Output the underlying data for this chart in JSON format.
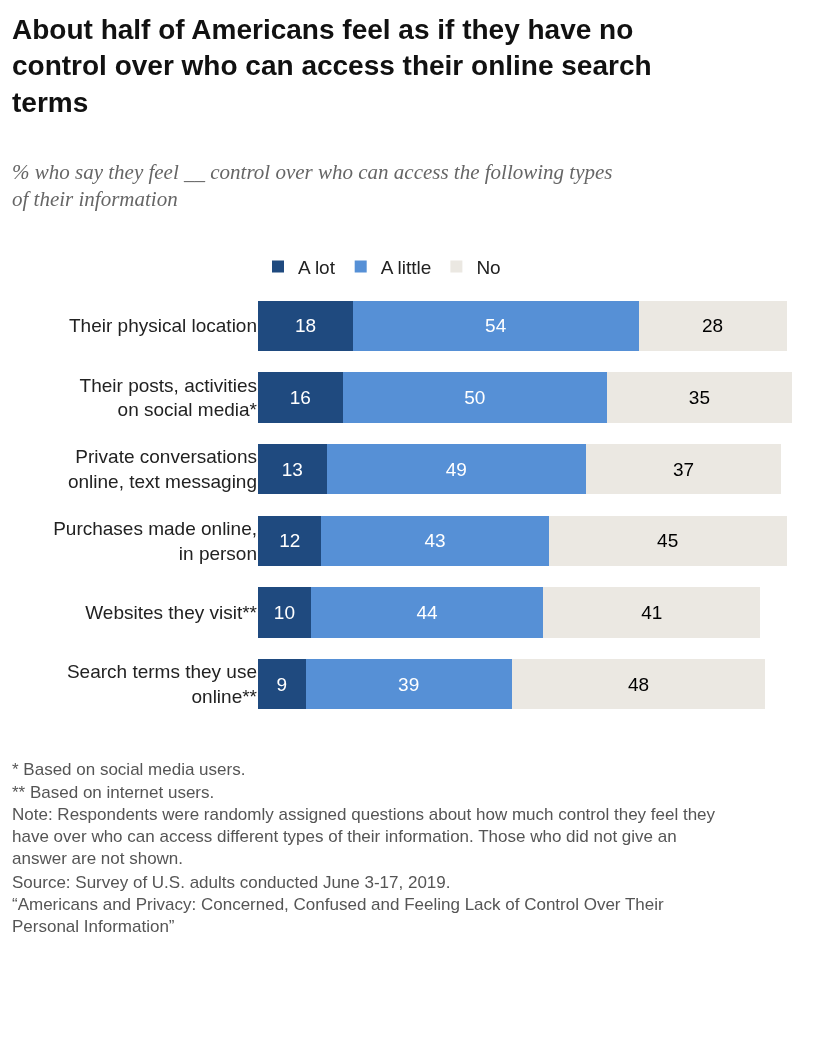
{
  "chart_data": {
    "type": "bar",
    "orientation": "horizontal",
    "stacked": true,
    "data_labels": true,
    "legend": "top",
    "title": "About half of Americans feel as if they have no control over who can access their online search terms",
    "subtitle": "% who say they feel __ control over who can access the following types of their information",
    "categories": [
      "Their physical location",
      "Their posts, activities on social media*",
      "Private conversations online, text messaging",
      "Purchases made online, in person",
      "Websites they visit**",
      "Search terms they use online**"
    ],
    "series": [
      {
        "name": "A lot",
        "color": "#1f4a7f",
        "values": [
          18,
          16,
          13,
          12,
          10,
          9
        ]
      },
      {
        "name": "A little",
        "color": "#5690d6",
        "values": [
          54,
          50,
          49,
          43,
          44,
          39
        ]
      },
      {
        "name": "No",
        "color": "#ebe8e2",
        "values": [
          28,
          35,
          37,
          45,
          41,
          48
        ]
      }
    ],
    "annotations": [
      "* Based on social media users.",
      "** Based on internet users.",
      "Note: Respondents were randomly assigned questions about how much control they feel they have over who can access different types of their information. Those who did not give an answer are not shown.",
      "Source: Survey of U.S. adults conducted June 3-17, 2019.",
      "“Americans and Privacy: Concerned, Confused and Feeling Lack of Control Over Their Personal Information”"
    ]
  }
}
